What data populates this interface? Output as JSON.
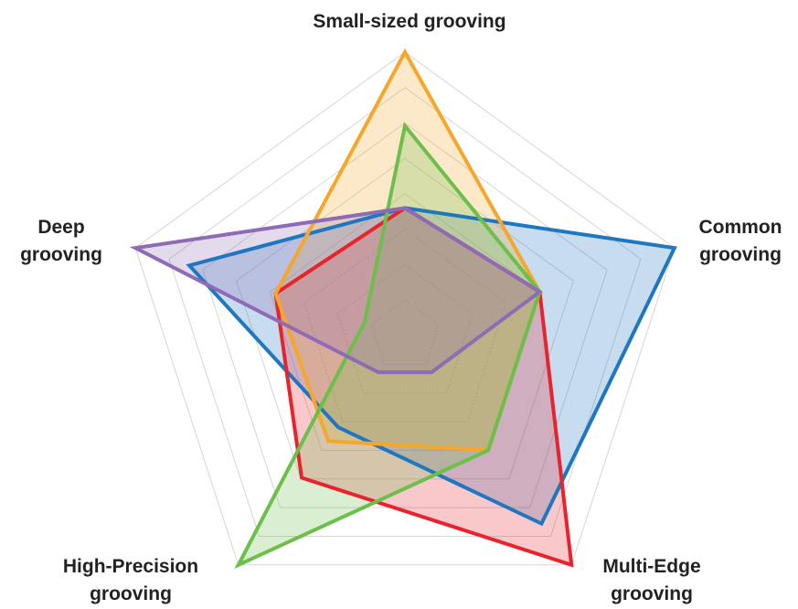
{
  "chart_data": {
    "type": "radar",
    "axes": [
      {
        "label_lines": [
          "Small-sized grooving"
        ]
      },
      {
        "label_lines": [
          "Common",
          "grooving"
        ]
      },
      {
        "label_lines": [
          "Multi-Edge",
          "grooving"
        ]
      },
      {
        "label_lines": [
          "High-Precision",
          "grooving"
        ]
      },
      {
        "label_lines": [
          "Deep",
          "grooving"
        ]
      }
    ],
    "range": [
      0,
      10
    ],
    "grid_levels": 8,
    "grid": true,
    "legend": "none",
    "series": [
      {
        "color": "#1f77c0",
        "values": [
          4.5,
          10,
          8.2,
          4.0,
          8.0
        ]
      },
      {
        "color": "#e8232e",
        "values": [
          4.5,
          5.0,
          10,
          6.2,
          4.8
        ]
      },
      {
        "color": "#f4a72a",
        "values": [
          10,
          5.0,
          5.0,
          4.6,
          4.8
        ]
      },
      {
        "color": "#6cbf4a",
        "values": [
          7.4,
          5.0,
          5.0,
          10,
          1.5
        ]
      },
      {
        "color": "#8e6bb5",
        "values": [
          4.5,
          5.0,
          1.6,
          1.6,
          10
        ]
      }
    ]
  }
}
